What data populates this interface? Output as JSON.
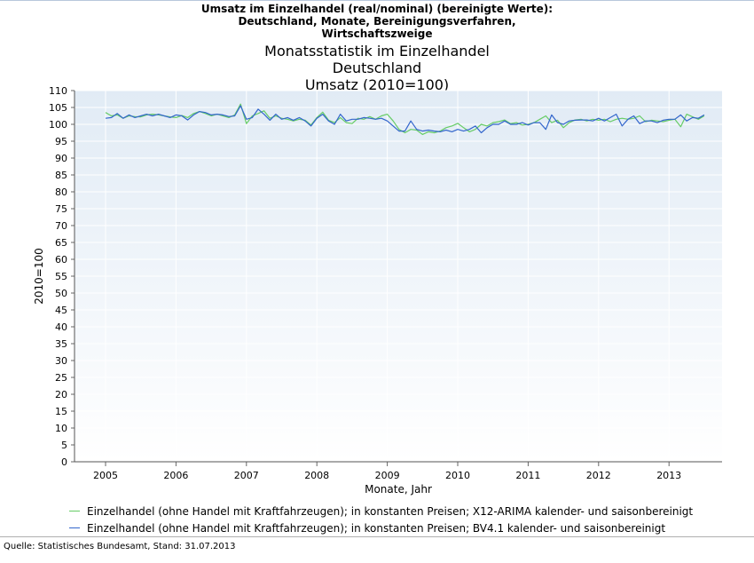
{
  "title_lines": [
    "Umsatz im Einzelhandel (real/nominal) (bereinigte Werte):",
    "Deutschland, Monate, Bereinigungsverfahren,",
    "Wirtschaftszweige"
  ],
  "subtitle_lines": [
    "Monatsstatistik im Einzelhandel",
    "Deutschland",
    "Umsatz (2010=100)"
  ],
  "source": "Quelle: Statistisches Bundesamt, Stand: 31.07.2013",
  "chart_data": {
    "type": "line",
    "xlabel": "Monate, Jahr",
    "ylabel": "2010=100",
    "ylim": [
      0,
      110
    ],
    "yticks": [
      0,
      5,
      10,
      15,
      20,
      25,
      30,
      35,
      40,
      45,
      50,
      55,
      60,
      65,
      70,
      75,
      80,
      85,
      90,
      95,
      100,
      105,
      110
    ],
    "xticks": [
      "2005",
      "2006",
      "2007",
      "2008",
      "2009",
      "2010",
      "2011",
      "2012",
      "2013"
    ],
    "x_start": "2005-01",
    "x_end": "2013-05",
    "grid": true,
    "legend_position": "bottom",
    "series": [
      {
        "name": "Einzelhandel (ohne Handel mit Kraftfahrzeugen); in konstanten Preisen; X12-ARIMA kalender- und saisonbereinigt",
        "color": "#66cc66",
        "values": [
          103.5,
          102.5,
          102.8,
          101.8,
          102.5,
          102.3,
          102.2,
          102.8,
          103.0,
          102.8,
          102.5,
          102.2,
          102.0,
          102.6,
          102.0,
          103.2,
          103.8,
          103.2,
          102.5,
          103.0,
          102.5,
          102.0,
          102.8,
          106.0,
          100.2,
          102.5,
          103.2,
          104.0,
          101.8,
          102.5,
          101.8,
          101.5,
          101.0,
          101.5,
          101.2,
          99.8,
          102.0,
          103.6,
          101.2,
          100.5,
          102.0,
          100.5,
          100.2,
          101.8,
          101.5,
          102.3,
          101.5,
          102.5,
          103.0,
          101.0,
          98.5,
          97.5,
          98.5,
          98.3,
          97.0,
          97.8,
          97.5,
          98.0,
          99.0,
          99.5,
          100.3,
          99.0,
          97.8,
          98.5,
          100.0,
          99.5,
          100.5,
          100.8,
          101.3,
          100.2,
          100.5,
          99.8,
          100.0,
          100.5,
          101.5,
          102.5,
          100.5,
          101.2,
          99.0,
          100.5,
          101.3,
          101.5,
          101.0,
          101.5,
          101.2,
          101.5,
          100.8,
          101.5,
          101.8,
          101.5,
          101.8,
          102.5,
          100.8,
          101.2,
          101.0,
          100.8,
          101.2,
          101.5,
          99.3,
          103.0,
          102.2,
          101.5,
          102.5
        ]
      },
      {
        "name": "Einzelhandel (ohne Handel mit Kraftfahrzeugen); in konstanten Preisen; BV4.1 kalender- und saisonbereinigt",
        "color": "#3366cc",
        "values": [
          101.8,
          102.0,
          103.2,
          101.8,
          102.8,
          102.0,
          102.5,
          103.0,
          102.5,
          103.0,
          102.5,
          102.0,
          102.8,
          102.5,
          101.3,
          102.8,
          103.8,
          103.5,
          102.8,
          103.0,
          102.8,
          102.3,
          102.5,
          105.5,
          101.5,
          102.0,
          104.5,
          103.0,
          101.2,
          103.0,
          101.5,
          102.0,
          101.2,
          102.0,
          101.0,
          99.5,
          101.8,
          103.0,
          101.0,
          100.0,
          103.0,
          101.0,
          101.5,
          101.5,
          102.0,
          101.8,
          101.5,
          101.8,
          101.0,
          99.5,
          98.0,
          98.0,
          101.0,
          98.5,
          98.0,
          98.3,
          98.0,
          97.8,
          98.3,
          97.8,
          98.5,
          98.0,
          98.5,
          99.5,
          97.5,
          99.0,
          100.0,
          100.0,
          101.0,
          100.0,
          100.0,
          100.5,
          99.8,
          100.5,
          100.5,
          98.5,
          102.8,
          100.5,
          100.0,
          101.0,
          101.2,
          101.3,
          101.3,
          101.0,
          101.8,
          101.0,
          102.0,
          103.0,
          99.5,
          101.5,
          102.5,
          100.2,
          101.0,
          101.0,
          100.5,
          101.2,
          101.5,
          101.5,
          102.8,
          101.0,
          102.0,
          101.8,
          102.8
        ]
      }
    ]
  }
}
